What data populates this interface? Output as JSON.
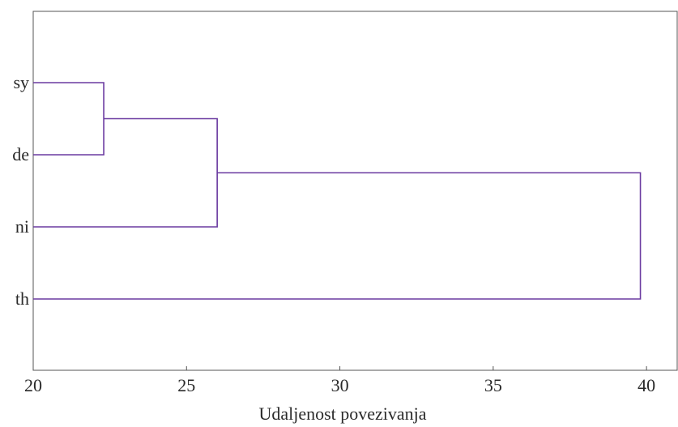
{
  "chart_data": {
    "type": "dendrogram",
    "title": "",
    "xlabel": "Udaljenost povezivanja",
    "ylabel": "",
    "xlim": [
      20,
      41
    ],
    "x_ticks": [
      {
        "value": 20,
        "label": "20"
      },
      {
        "value": 25,
        "label": "25"
      },
      {
        "value": 30,
        "label": "30"
      },
      {
        "value": 35,
        "label": "35"
      },
      {
        "value": 40,
        "label": "40"
      }
    ],
    "leaves": [
      "sy",
      "de",
      "ni",
      "th"
    ],
    "merges": [
      {
        "a": "sy",
        "b": "de",
        "distance": 22.3
      },
      {
        "a": "sy+de",
        "b": "ni",
        "distance": 26.0
      },
      {
        "a": "sy+de+ni",
        "b": "th",
        "distance": 39.8
      }
    ],
    "grid": false,
    "line_color": "#6a3aa0"
  }
}
